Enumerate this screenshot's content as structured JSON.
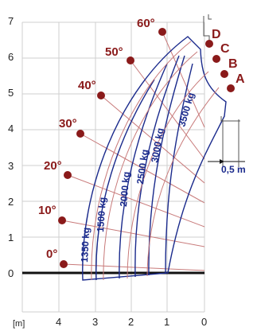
{
  "y_axis_ticks": [
    "0",
    "1",
    "2",
    "3",
    "4",
    "5",
    "6",
    "7"
  ],
  "x_axis_ticks": [
    "4",
    "3",
    "2",
    "1",
    "0"
  ],
  "x_axis_unit": "[m]",
  "angles": [
    "0°",
    "10°",
    "20°",
    "30°",
    "40°",
    "50°",
    "60°"
  ],
  "boom_extensions": [
    "A",
    "B",
    "C",
    "D"
  ],
  "load_capacities": [
    "1350 kg",
    "1500 kg",
    "2000 kg",
    "2500 kg",
    "3000 kg",
    "3500 kg"
  ],
  "overhang_dimension": "0,5 m",
  "colors": {
    "grid": "#cfcfcf",
    "envelope": "#1a2a8c",
    "angle_marker": "#8a1a1a",
    "ground": "#111111"
  }
}
